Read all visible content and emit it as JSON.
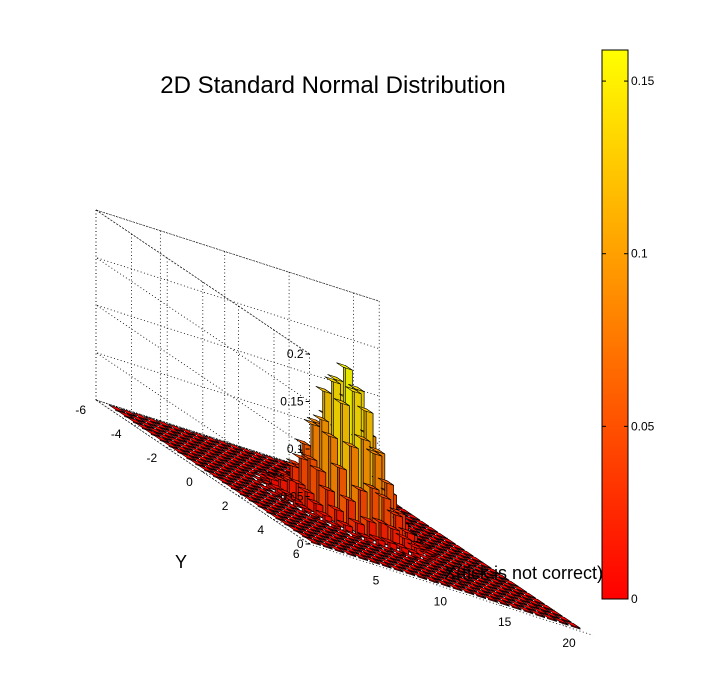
{
  "chart_data": {
    "type": "bar3",
    "title": "2D Standard Normal Distribution",
    "xlabel": "X(tick is not correct)",
    "ylabel": "Y",
    "zlabel": "",
    "x_ticks": [
      "5",
      "10",
      "15",
      "20"
    ],
    "y_ticks": [
      "-6",
      "-4",
      "-2",
      "0",
      "2",
      "4",
      "6"
    ],
    "z_ticks": [
      "0",
      "0.05",
      "0.1",
      "0.15",
      "0.2"
    ],
    "x_tick_values": [
      5,
      10,
      15,
      20
    ],
    "y_tick_values": [
      -6,
      -4,
      -2,
      0,
      2,
      4,
      6
    ],
    "z_tick_values": [
      0,
      0.05,
      0.1,
      0.15,
      0.2
    ],
    "xlim": [
      0,
      22
    ],
    "ylim": [
      -6,
      6
    ],
    "zlim": [
      0,
      0.2
    ],
    "grid": true,
    "grid_x_range": [
      -5.5,
      5.5
    ],
    "grid_y_range": [
      -5.5,
      5.5
    ],
    "grid_step": 0.5,
    "bar_index_range": [
      1,
      21
    ],
    "function": "exp(-(x^2+y^2)/2)/(2*pi)",
    "peak_value": 0.159,
    "colormap": "autumn",
    "colormap_start": "#FF0000",
    "colormap_end": "#FFFF00",
    "colorbar": {
      "position": "right",
      "ticks": [
        "0",
        "0.05",
        "0.1",
        "0.15"
      ],
      "tick_values": [
        0,
        0.05,
        0.1,
        0.15
      ],
      "range": [
        0,
        0.159
      ]
    }
  }
}
